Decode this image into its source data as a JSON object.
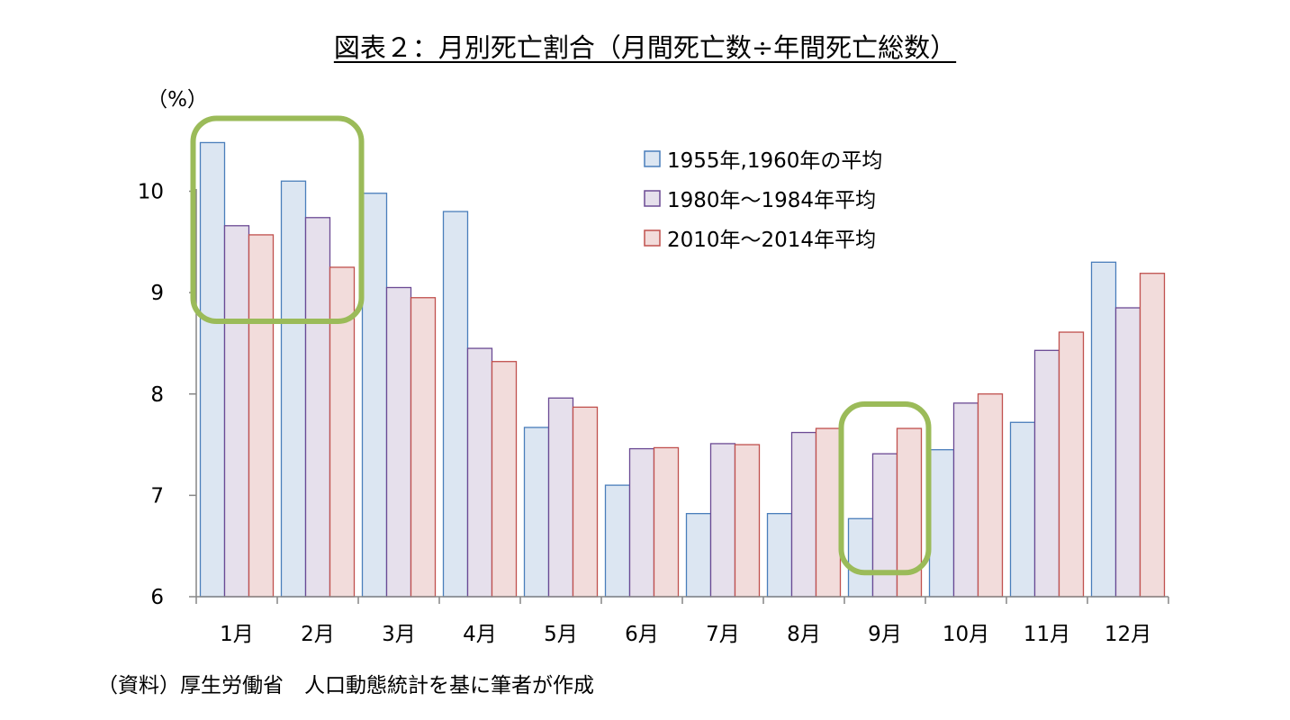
{
  "title": "図表２：月別死亡割合（月間死亡数÷年間死亡総数）",
  "source_note": "（資料）厚生労働省　人口動態統計を基に筆者が作成",
  "chart_data": {
    "type": "bar",
    "title": "図表２：月別死亡割合（月間死亡数÷年間死亡総数）",
    "ylabel": "（%）",
    "xlabel": "",
    "ylim": [
      6,
      10.6
    ],
    "yticks": [
      "6",
      "7",
      "8",
      "9",
      "10"
    ],
    "categories": [
      "1月",
      "2月",
      "3月",
      "4月",
      "5月",
      "6月",
      "7月",
      "8月",
      "9月",
      "10月",
      "11月",
      "12月"
    ],
    "series": [
      {
        "name": "1955年,1960年の平均",
        "fill": "#dce6f2",
        "stroke": "#4a7ebb",
        "values": [
          10.48,
          10.1,
          9.98,
          9.8,
          7.67,
          7.1,
          6.82,
          6.82,
          6.77,
          7.45,
          7.72,
          9.3
        ]
      },
      {
        "name": "1980年～1984年平均",
        "fill": "#e6e0ec",
        "stroke": "#6b4a94",
        "values": [
          9.66,
          9.74,
          9.05,
          8.45,
          7.96,
          7.46,
          7.51,
          7.62,
          7.41,
          7.91,
          8.43,
          8.85
        ]
      },
      {
        "name": "2010年～2014年平均",
        "fill": "#f2dcdb",
        "stroke": "#c0504d",
        "values": [
          9.57,
          9.25,
          8.95,
          8.32,
          7.87,
          7.47,
          7.5,
          7.66,
          7.66,
          8.0,
          8.61,
          9.19
        ]
      }
    ],
    "grid": false,
    "legend_position": "top-right",
    "highlight_color": "#9bbb59",
    "highlighted_categories": [
      [
        "1月",
        "2月"
      ],
      [
        "9月"
      ]
    ]
  }
}
